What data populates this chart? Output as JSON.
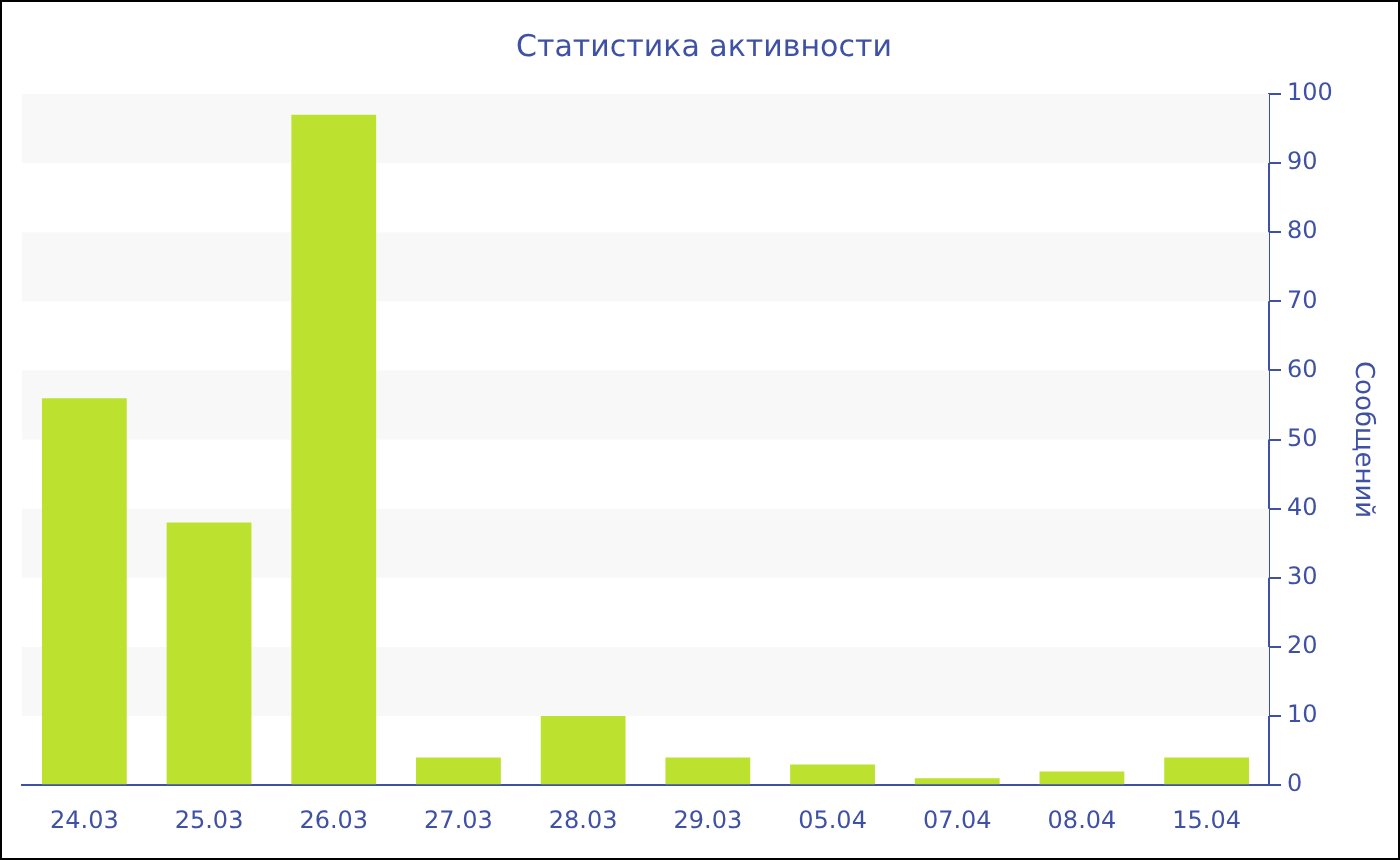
{
  "chart_data": {
    "type": "bar",
    "title": "Статистика активности",
    "ylabel": "Сообщений",
    "categories": [
      "24.03",
      "25.03",
      "26.03",
      "27.03",
      "28.03",
      "29.03",
      "05.04",
      "07.04",
      "08.04",
      "15.04"
    ],
    "values": [
      56,
      38,
      97,
      4,
      10,
      4,
      3,
      1,
      2,
      4
    ],
    "color": "#bce12e",
    "ylim": [
      0,
      100
    ],
    "yticks": [
      0,
      10,
      20,
      30,
      40,
      50,
      60,
      70,
      80,
      90,
      100
    ],
    "legend": false,
    "bands": [
      {
        "axis": "y",
        "from": 10,
        "to": 20,
        "color": "#f8f8f8"
      },
      {
        "axis": "y",
        "from": 30,
        "to": 40,
        "color": "#f8f8f8"
      },
      {
        "axis": "y",
        "from": 50,
        "to": 60,
        "color": "#f8f8f8"
      },
      {
        "axis": "y",
        "from": 70,
        "to": 80,
        "color": "#f8f8f8"
      },
      {
        "axis": "y",
        "from": 90,
        "to": 100,
        "color": "#f8f8f8"
      }
    ]
  }
}
